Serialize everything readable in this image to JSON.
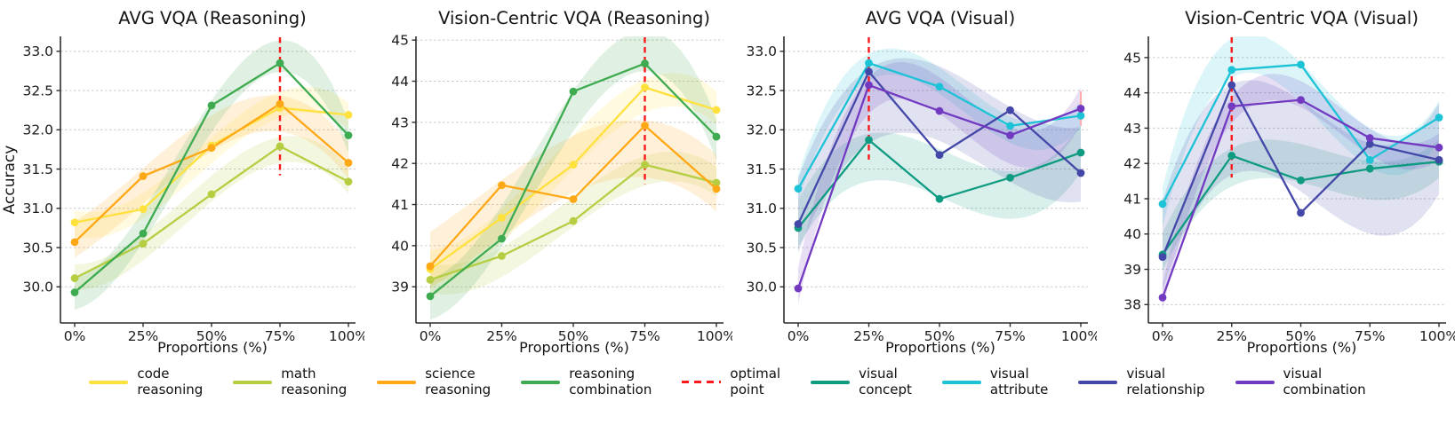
{
  "legend": {
    "items": [
      {
        "id": "code-reasoning",
        "lines": [
          "code",
          "reasoning"
        ],
        "color": "#FFE13E",
        "dashed": false
      },
      {
        "id": "math-reasoning",
        "lines": [
          "math",
          "reasoning"
        ],
        "color": "#B5CE41",
        "dashed": false
      },
      {
        "id": "science-reasoning",
        "lines": [
          "science",
          "reasoning"
        ],
        "color": "#FFA815",
        "dashed": false
      },
      {
        "id": "reasoning-combination",
        "lines": [
          "reasoning",
          "combination"
        ],
        "color": "#3EAB50",
        "dashed": false
      },
      {
        "id": "optimal-point",
        "lines": [
          "optimal",
          "point"
        ],
        "color": "#FA1A1A",
        "dashed": true
      },
      {
        "id": "visual-concept",
        "lines": [
          "visual",
          "concept"
        ],
        "color": "#0E9B82",
        "dashed": false
      },
      {
        "id": "visual-attribute",
        "lines": [
          "visual",
          "attribute"
        ],
        "color": "#1CC3D6",
        "dashed": false
      },
      {
        "id": "visual-relationship",
        "lines": [
          "visual",
          "relationship"
        ],
        "color": "#4348A8",
        "dashed": false
      },
      {
        "id": "visual-combination",
        "lines": [
          "visual",
          "combination"
        ],
        "color": "#7239C1",
        "dashed": false
      }
    ]
  },
  "chart_data": [
    {
      "type": "line",
      "name": "avg-vqa-reasoning",
      "title": "AVG VQA (Reasoning)",
      "xlabel": "Proportions (%)",
      "ylabel": "Accuracy",
      "x_ticklabels": [
        "0%",
        "25%",
        "50%",
        "75%",
        "100%"
      ],
      "yticks": [
        30.0,
        30.5,
        31.0,
        31.5,
        32.0,
        32.5,
        33.0
      ],
      "ytick_labels": [
        "30.0",
        "30.5",
        "31.0",
        "31.5",
        "32.0",
        "32.5",
        "33.0"
      ],
      "ylim": [
        29.54,
        33.19
      ],
      "grid": true,
      "optimal": {
        "x_index": 3,
        "line_bottom": 31.42
      },
      "series": [
        {
          "name": "code reasoning",
          "color": "#FFE13E",
          "values": [
            30.82,
            30.99,
            31.8,
            32.28,
            32.19
          ]
        },
        {
          "name": "math reasoning",
          "color": "#B5CE41",
          "values": [
            30.11,
            30.55,
            31.18,
            31.79,
            31.34
          ]
        },
        {
          "name": "science reasoning",
          "color": "#FFA815",
          "values": [
            30.57,
            31.41,
            31.77,
            32.33,
            31.58
          ]
        },
        {
          "name": "reasoning combination",
          "color": "#3EAB50",
          "values": [
            29.93,
            30.68,
            32.31,
            32.85,
            31.93
          ]
        }
      ]
    },
    {
      "type": "line",
      "name": "vision-centric-vqa-reasoning",
      "title": "Vision-Centric VQA (Reasoning)",
      "xlabel": "Proportions (%)",
      "ylabel": "",
      "x_ticklabels": [
        "0%",
        "25%",
        "50%",
        "75%",
        "100%"
      ],
      "yticks": [
        39,
        40,
        41,
        42,
        43,
        44,
        45
      ],
      "ytick_labels": [
        "39",
        "40",
        "41",
        "42",
        "43",
        "44",
        "45"
      ],
      "ylim": [
        38.12,
        45.09
      ],
      "grid": true,
      "optimal": {
        "x_index": 3,
        "line_bottom": 41.5
      },
      "series": [
        {
          "name": "code reasoning",
          "color": "#FFE13E",
          "values": [
            39.43,
            40.68,
            41.97,
            43.85,
            43.3
          ]
        },
        {
          "name": "math reasoning",
          "color": "#B5CE41",
          "values": [
            39.17,
            39.75,
            40.6,
            41.97,
            41.53
          ]
        },
        {
          "name": "science reasoning",
          "color": "#FFA815",
          "values": [
            39.5,
            41.47,
            41.13,
            42.92,
            41.38
          ]
        },
        {
          "name": "reasoning combination",
          "color": "#3EAB50",
          "values": [
            38.77,
            40.17,
            43.75,
            44.43,
            42.65
          ]
        }
      ]
    },
    {
      "type": "line",
      "name": "avg-vqa-visual",
      "title": "AVG VQA (Visual)",
      "xlabel": "Proportions (%)",
      "ylabel": "",
      "x_ticklabels": [
        "0%",
        "25%",
        "50%",
        "75%",
        "100%"
      ],
      "yticks": [
        30.0,
        30.5,
        31.0,
        31.5,
        32.0,
        32.5,
        33.0
      ],
      "ytick_labels": [
        "30.0",
        "30.5",
        "31.0",
        "31.5",
        "32.0",
        "32.5",
        "33.0"
      ],
      "ylim": [
        29.54,
        33.19
      ],
      "grid": true,
      "optimal": {
        "x_index": 1,
        "line_bottom": 31.62
      },
      "error_mark": {
        "x_index": 4,
        "value": 32.27,
        "half": 0.22,
        "color": "#ffacac"
      },
      "series": [
        {
          "name": "visual concept",
          "color": "#0E9B82",
          "values": [
            30.75,
            31.87,
            31.12,
            31.39,
            31.71
          ]
        },
        {
          "name": "visual attribute",
          "color": "#1CC3D6",
          "values": [
            31.25,
            32.85,
            32.55,
            32.05,
            32.18
          ]
        },
        {
          "name": "visual relationship",
          "color": "#4348A8",
          "values": [
            30.8,
            32.74,
            31.68,
            32.25,
            31.45
          ]
        },
        {
          "name": "visual combination",
          "color": "#7239C1",
          "values": [
            29.98,
            32.57,
            32.24,
            31.93,
            32.27
          ]
        }
      ]
    },
    {
      "type": "line",
      "name": "vision-centric-vqa-visual",
      "title": "Vision-Centric VQA (Visual)",
      "xlabel": "Proportions (%)",
      "ylabel": "",
      "x_ticklabels": [
        "0%",
        "25%",
        "50%",
        "75%",
        "100%"
      ],
      "yticks": [
        38,
        39,
        40,
        41,
        42,
        43,
        44,
        45
      ],
      "ytick_labels": [
        "38",
        "39",
        "40",
        "41",
        "42",
        "43",
        "44",
        "45"
      ],
      "ylim": [
        37.48,
        45.6
      ],
      "grid": true,
      "optimal": {
        "x_index": 1,
        "line_bottom": 41.6
      },
      "series": [
        {
          "name": "visual concept",
          "color": "#0E9B82",
          "values": [
            39.42,
            42.22,
            41.52,
            41.85,
            42.05
          ]
        },
        {
          "name": "visual attribute",
          "color": "#1CC3D6",
          "values": [
            40.85,
            44.65,
            44.8,
            42.1,
            43.3
          ]
        },
        {
          "name": "visual relationship",
          "color": "#4348A8",
          "values": [
            39.35,
            44.22,
            40.6,
            42.55,
            42.1
          ]
        },
        {
          "name": "visual combination",
          "color": "#7239C1",
          "values": [
            38.2,
            43.62,
            43.8,
            42.72,
            42.45
          ]
        }
      ]
    }
  ]
}
